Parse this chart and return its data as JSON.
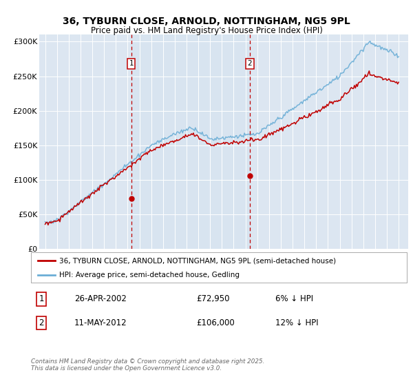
{
  "title1": "36, TYBURN CLOSE, ARNOLD, NOTTINGHAM, NG5 9PL",
  "title2": "Price paid vs. HM Land Registry's House Price Index (HPI)",
  "legend1": "36, TYBURN CLOSE, ARNOLD, NOTTINGHAM, NG5 9PL (semi-detached house)",
  "legend2": "HPI: Average price, semi-detached house, Gedling",
  "footer": "Contains HM Land Registry data © Crown copyright and database right 2025.\nThis data is licensed under the Open Government Licence v3.0.",
  "annotation1_date": "26-APR-2002",
  "annotation1_price": "£72,950",
  "annotation1_hpi": "6% ↓ HPI",
  "annotation2_date": "11-MAY-2012",
  "annotation2_price": "£106,000",
  "annotation2_hpi": "12% ↓ HPI",
  "marker1_year": 2002.32,
  "marker1_value": 72950,
  "marker2_year": 2012.37,
  "marker2_value": 106000,
  "hpi_color": "#6baed6",
  "price_color": "#c00000",
  "vline_color": "#c00000",
  "bg_color": "#dce6f1",
  "shade_color": "#d6e4f0",
  "ylim": [
    0,
    310000
  ],
  "xlim_start": 1994.5,
  "xlim_end": 2025.8,
  "yticks": [
    0,
    50000,
    100000,
    150000,
    200000,
    250000,
    300000
  ],
  "ytick_labels": [
    "£0",
    "£50K",
    "£100K",
    "£150K",
    "£200K",
    "£250K",
    "£300K"
  ],
  "xticks": [
    1995,
    1996,
    1997,
    1998,
    1999,
    2000,
    2001,
    2002,
    2003,
    2004,
    2005,
    2006,
    2007,
    2008,
    2009,
    2010,
    2011,
    2012,
    2013,
    2014,
    2015,
    2016,
    2017,
    2018,
    2019,
    2020,
    2021,
    2022,
    2023,
    2024,
    2025
  ]
}
